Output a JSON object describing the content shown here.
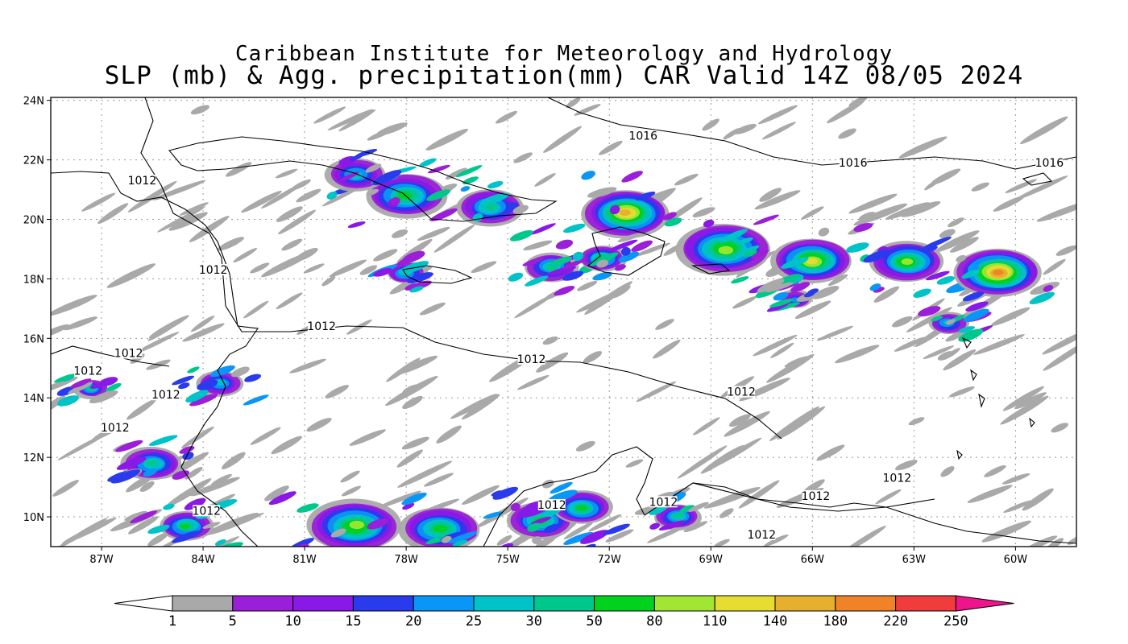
{
  "titles": {
    "line1": "Caribbean Institute for Meteorology and Hydrology",
    "line2": "SLP (mb) & Agg. precipitation(mm) CAR Valid 14Z 08/05 2024"
  },
  "map": {
    "lon_ticks": [
      "87W",
      "84W",
      "81W",
      "78W",
      "75W",
      "72W",
      "69W",
      "66W",
      "63W",
      "60W"
    ],
    "lat_ticks": [
      "24N",
      "22N",
      "20N",
      "18N",
      "16N",
      "14N",
      "12N",
      "10N"
    ],
    "isobar_labels": [
      {
        "text": "1016",
        "lon": -71.0,
        "lat": 22.7
      },
      {
        "text": "1016",
        "lon": -64.8,
        "lat": 21.8
      },
      {
        "text": "1016",
        "lon": -59.0,
        "lat": 21.8
      },
      {
        "text": "1012",
        "lon": -85.8,
        "lat": 21.2
      },
      {
        "text": "1012",
        "lon": -83.7,
        "lat": 18.2
      },
      {
        "text": "1012",
        "lon": -80.5,
        "lat": 16.3
      },
      {
        "text": "1012",
        "lon": -74.3,
        "lat": 15.2
      },
      {
        "text": "1012",
        "lon": -68.1,
        "lat": 14.1
      },
      {
        "text": "1012",
        "lon": -86.2,
        "lat": 15.4
      },
      {
        "text": "1012",
        "lon": -87.4,
        "lat": 14.8
      },
      {
        "text": "1012",
        "lon": -85.1,
        "lat": 14.0
      },
      {
        "text": "1012",
        "lon": -86.6,
        "lat": 12.9
      },
      {
        "text": "1012",
        "lon": -83.9,
        "lat": 10.1
      },
      {
        "text": "1012",
        "lon": -73.7,
        "lat": 10.3
      },
      {
        "text": "1012",
        "lon": -70.4,
        "lat": 10.4
      },
      {
        "text": "1012",
        "lon": -65.9,
        "lat": 10.6
      },
      {
        "text": "1012",
        "lon": -63.5,
        "lat": 11.2
      },
      {
        "text": "1012",
        "lon": -67.5,
        "lat": 9.3
      }
    ]
  },
  "colorbar": {
    "labels": [
      "1",
      "5",
      "10",
      "15",
      "20",
      "25",
      "30",
      "50",
      "80",
      "110",
      "140",
      "180",
      "220",
      "250"
    ],
    "colors": [
      "#a9a9a9",
      "#9b1fd8",
      "#8a18e6",
      "#2a3aed",
      "#0a96f6",
      "#00c3c8",
      "#00c88c",
      "#00d21e",
      "#a0e632",
      "#e6dc32",
      "#e6af2d",
      "#f08228",
      "#f03c3c",
      "#f0148c"
    ]
  },
  "precip_cells": [
    {
      "lon": -71.5,
      "lat": 20.2,
      "r": 1.3,
      "v": 140
    },
    {
      "lon": -68.6,
      "lat": 19.0,
      "r": 1.4,
      "v": 80
    },
    {
      "lon": -66.0,
      "lat": 18.6,
      "r": 1.2,
      "v": 110
    },
    {
      "lon": -63.2,
      "lat": 18.6,
      "r": 1.1,
      "v": 80
    },
    {
      "lon": -60.5,
      "lat": 18.2,
      "r": 1.3,
      "v": 180
    },
    {
      "lon": -78.0,
      "lat": 20.8,
      "r": 1.2,
      "v": 50
    },
    {
      "lon": -75.5,
      "lat": 20.4,
      "r": 1.0,
      "v": 30
    },
    {
      "lon": -79.5,
      "lat": 21.5,
      "r": 0.9,
      "v": 25
    },
    {
      "lon": -78.0,
      "lat": 18.2,
      "r": 0.6,
      "v": 30
    },
    {
      "lon": -73.7,
      "lat": 18.4,
      "r": 0.8,
      "v": 30
    },
    {
      "lon": -72.2,
      "lat": 18.7,
      "r": 0.7,
      "v": 50
    },
    {
      "lon": -79.5,
      "lat": 9.7,
      "r": 1.4,
      "v": 80
    },
    {
      "lon": -77.0,
      "lat": 9.6,
      "r": 1.2,
      "v": 50
    },
    {
      "lon": -74.0,
      "lat": 9.9,
      "r": 1.0,
      "v": 50
    },
    {
      "lon": -72.8,
      "lat": 10.3,
      "r": 0.9,
      "v": 50
    },
    {
      "lon": -70.0,
      "lat": 10.0,
      "r": 0.7,
      "v": 30
    },
    {
      "lon": -85.5,
      "lat": 11.8,
      "r": 0.9,
      "v": 30
    },
    {
      "lon": -84.5,
      "lat": 9.7,
      "r": 0.8,
      "v": 50
    },
    {
      "lon": -83.5,
      "lat": 14.5,
      "r": 0.7,
      "v": 25
    },
    {
      "lon": -87.3,
      "lat": 14.3,
      "r": 0.5,
      "v": 30
    },
    {
      "lon": -62.0,
      "lat": 16.5,
      "r": 0.6,
      "v": 25
    },
    {
      "lon": -66.5,
      "lat": 17.3,
      "r": 0.5,
      "v": 20
    }
  ]
}
